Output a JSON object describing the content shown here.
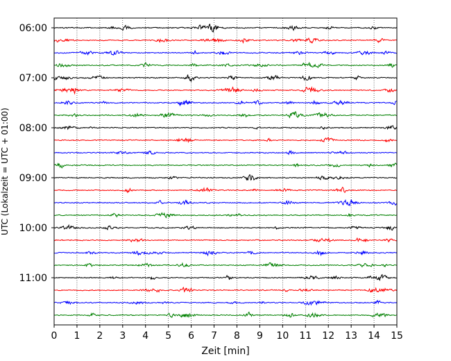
{
  "chart_data": {
    "type": "line",
    "title": "",
    "xlabel": "Zeit  [min]",
    "ylabel": "UTC (Lokalzeit = UTC + 01:00)",
    "xlim": [
      0,
      15
    ],
    "x_ticks": [
      "0",
      "1",
      "2",
      "3",
      "4",
      "5",
      "6",
      "7",
      "8",
      "9",
      "10",
      "11",
      "12",
      "13",
      "14",
      "15"
    ],
    "y_ticks": [
      "06:00",
      "07:00",
      "08:00",
      "09:00",
      "10:00",
      "11:00"
    ],
    "grid": "vertical dotted lines at each minute",
    "trace_interval_minutes": 15,
    "trace_start": "06:00",
    "trace_end": "11:45",
    "trace_count": 24,
    "trace_colors": [
      "#000000",
      "#ff0000",
      "#0000ff",
      "#008000"
    ]
  }
}
